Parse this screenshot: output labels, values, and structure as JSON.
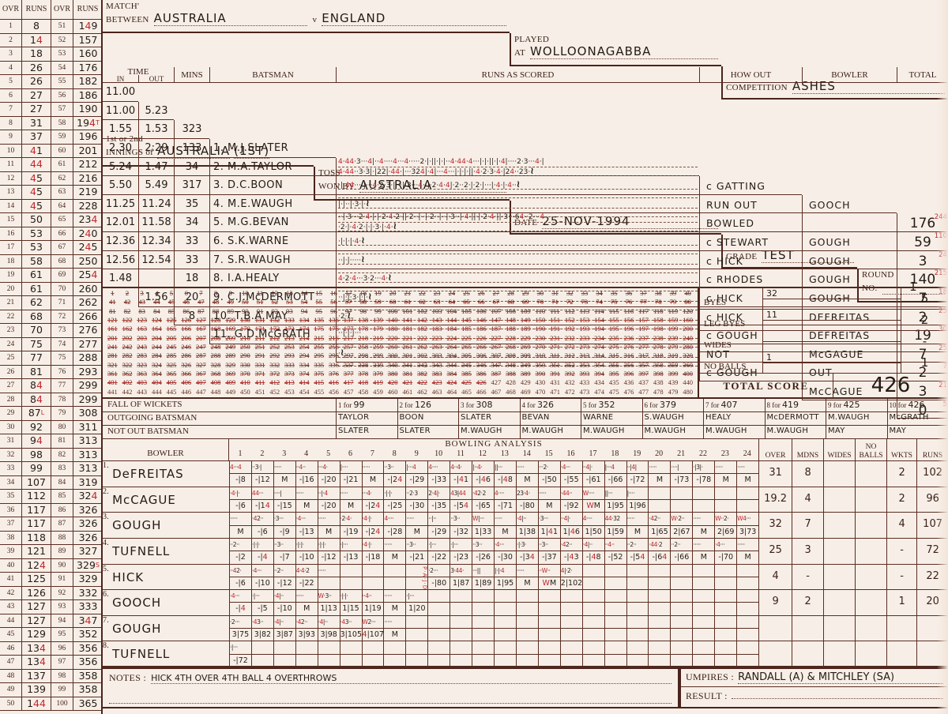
{
  "header": {
    "match_label": "MATCH'",
    "between_label": "BETWEEN",
    "team1": "AUSTRALIA",
    "vs": "v",
    "team2": "ENGLAND",
    "played_label": "PLAYED",
    "at_label": "AT",
    "venue": "WOLLOONAGABBA",
    "competition_label": "COMPETITION",
    "competition": "ASHES",
    "innings_label1": "1st or 2nd",
    "innings_label2": "INNINGS of",
    "innings_team": "AUSTRALIA",
    "innings_no": "(1ST)",
    "toss_label1": "TOSS",
    "toss_label2": "WON BY",
    "toss_team": "AUSTRALIA",
    "date_label": "DATE",
    "date": "25-NOV-1994",
    "grade_label": "GRADE",
    "grade": "TEST",
    "round_label": "ROUND",
    "no_label": "NO.",
    "round_no": "1"
  },
  "over_table": {
    "headers": [
      "OVR",
      "RUNS",
      "OVR",
      "RUNS"
    ],
    "runs_first": [
      "8",
      "14",
      "18",
      "26",
      "26",
      "27",
      "27",
      "31",
      "37",
      "41",
      "44",
      "45",
      "45",
      "45",
      "50",
      "53",
      "53",
      "58",
      "61",
      "61",
      "62",
      "68",
      "70",
      "75",
      "77",
      "81",
      "84",
      "84",
      "87",
      "92",
      "94",
      "98",
      "99",
      "107",
      "112",
      "117",
      "117",
      "118",
      "121",
      "124",
      "125",
      "126",
      "127",
      "127",
      "129",
      "134",
      "134",
      "137",
      "139",
      "144"
    ],
    "runs_second": [
      "149",
      "157",
      "160",
      "176",
      "182",
      "186",
      "190",
      "194",
      "196",
      "201",
      "212",
      "216",
      "219",
      "228",
      "234",
      "240",
      "245",
      "250",
      "254",
      "260",
      "262",
      "266",
      "276",
      "277",
      "288",
      "293",
      "299",
      "299",
      "308",
      "311",
      "313",
      "313",
      "313",
      "319",
      "324",
      "326",
      "326",
      "326",
      "327",
      "329",
      "329",
      "332",
      "333",
      "347",
      "352",
      "356",
      "356",
      "358",
      "358",
      "365"
    ],
    "marks_second": {
      "8": "T",
      "40": "S"
    },
    "marks_first": {
      "29": "L"
    }
  },
  "batting": {
    "time_label": "TIME",
    "in_label": "IN",
    "out_label": "OUT",
    "mins_label": "MINS",
    "batsman_label": "BATSMAN",
    "runs_label": "RUNS AS SCORED",
    "how_out_label": "HOW OUT",
    "bowler_label": "BOWLER",
    "total_label": "TOTAL",
    "rows": [
      {
        "in": "11.00",
        "out": "5.23",
        "mins": "323",
        "name": "1. M.J.SLATER",
        "scored": "4·44·3···4|··4····4···4·····2·|·||·|·|··4·44·4···|·|·||·|·4|····2·3···4·|",
        "scored2": "4·44··3·3|·|22|·44·|···324|·4|···4···|·|·|·||·4·2·3·4·|24··23·≀",
        "how_out": "c GATTING",
        "bowler": "GOOCH",
        "total": "176",
        "balls": "244"
      },
      {
        "in": "11.00",
        "out": "1.53",
        "mins": "133",
        "name": "2. M.A.TAYLOR",
        "scored": "·|·44····|···4·2·3·|···|·3···4··|·2·4·4|·2··2·|·2·|···|·4·|·4··≀",
        "how_out": "RUN OUT",
        "bowler": "",
        "total": "59",
        "balls": "110"
      },
      {
        "in": "1.55",
        "out": "2:29",
        "mins": "34",
        "name": "3. D.C.BOON",
        "scored": "|·|··|·3·|·≀",
        "how_out": "BOWLED",
        "bowler": "GOUGH",
        "total": "3",
        "balls": "24"
      },
      {
        "in": "2.30",
        "out": "1.47",
        "mins": "317",
        "name": "4. M.E.WAUGH",
        "scored": "··|·3···2·4·|·|·2·4·2·||·2··|··|·2··|··|·3··|·4·||·|·2·4·||·3···64··2···4",
        "scored2": "·2·|·4·2·|·|·3·|·4·≀",
        "how_out": "c STEWART",
        "bowler": "GOUGH",
        "total": "140",
        "balls": "215"
      },
      {
        "in": "5.24",
        "out": "5.49",
        "mins": "35",
        "name": "5. M.G.BEVAN",
        "scored": "·|·|·|·4·≀",
        "how_out": "c HICK",
        "bowler": "GOUGH",
        "total": "7",
        "balls": "18"
      },
      {
        "in": "5.50",
        "out": "11.24",
        "mins": "34",
        "name": "6. S.K.WARNE",
        "scored": "··|·|·····≀",
        "how_out": "c RHODES",
        "bowler": "GOUGH",
        "total": "2",
        "balls": "25"
      },
      {
        "in": "11.25",
        "out": "11.58",
        "mins": "33",
        "name": "7. S.R.WAUGH",
        "scored": "4·2·4···3·2···4·≀",
        "how_out": "c HICK",
        "bowler": "DEFREITAS",
        "total": "19",
        "balls": "30"
      },
      {
        "in": "12.01",
        "out": "12.34",
        "mins": "33",
        "name": "8. I.A.HEALY",
        "scored": "··|·|·3·|·|·≀",
        "how_out": "c HICK",
        "bowler": "DEFREITAS",
        "total": "7",
        "balls": "25"
      },
      {
        "in": "12.36",
        "out": "12.54",
        "mins": "18",
        "name": "9. C.J.McDERMOTT",
        "scored": "·2·≀",
        "how_out": "c GOUGH",
        "bowler": "McGAGUE",
        "total": "2",
        "balls": "7"
      },
      {
        "in": "12.56",
        "out": "",
        "mins": "20",
        "name": "10. T.B.A.MAY",
        "scored": "··|·|·|···",
        "how_out": "NOT",
        "bowler": "OUT",
        "total": "3",
        "balls": "21"
      },
      {
        "in": "1.48",
        "out": "1.56",
        "mins": "8",
        "name": "11. G.D.McGRATH",
        "scored": "·≀",
        "how_out": "c GOUGH",
        "bowler": "McCAGUE",
        "total": "0",
        "balls": "5"
      }
    ]
  },
  "tally_sheet": {
    "start": 1,
    "end": 480,
    "per_row": 40,
    "crossed_to": 426
  },
  "extras": {
    "rows": [
      {
        "label": "BYES",
        "tally": "32",
        "value": "5"
      },
      {
        "label": "LEG BYES",
        "tally": "11",
        "value": "2"
      },
      {
        "label": "WIDES",
        "tally": "",
        "value": "-"
      },
      {
        "label": "NO BALLS",
        "tally": "1",
        "value": "1"
      }
    ],
    "total_label": "TOTAL SCORE",
    "total_value": "426"
  },
  "fall_of_wickets": {
    "row_labels": [
      "FALL OF WICKETS",
      "OUTGOING BATSMAN",
      "NOT OUT BATSMAN"
    ],
    "wickets": [
      {
        "for": "1 for",
        "score": "99",
        "out": "TAYLOR",
        "notout": "SLATER"
      },
      {
        "for": "2 for",
        "score": "126",
        "out": "BOON",
        "notout": "SLATER"
      },
      {
        "for": "3 for",
        "score": "308",
        "out": "SLATER",
        "notout": "M.WAUGH"
      },
      {
        "for": "4 for",
        "score": "326",
        "out": "BEVAN",
        "notout": "M.WAUGH"
      },
      {
        "for": "5 for",
        "score": "352",
        "out": "WARNE",
        "notout": "M.WAUGH"
      },
      {
        "for": "6 for",
        "score": "379",
        "out": "S.WAUGH",
        "notout": "M.WAUGH"
      },
      {
        "for": "7 for",
        "score": "407",
        "out": "HEALY",
        "notout": "M.WAUGH"
      },
      {
        "for": "8 for",
        "score": "419",
        "out": "McDERMOTT",
        "notout": "M.WAUGH"
      },
      {
        "for": "9 for",
        "score": "425",
        "out": "M.WAUGH",
        "notout": "MAY"
      },
      {
        "for": "10 for",
        "score": "426",
        "out": "McGRATH",
        "notout": "MAY"
      }
    ]
  },
  "bowling": {
    "title": "BOWLING ANALYSIS",
    "bowler_label": "BOWLER",
    "right_headers": [
      "OVER",
      "MDNS",
      "WIDES",
      "NO BALLS",
      "WKTS",
      "RUNS"
    ],
    "bowlers": [
      {
        "no": "1.",
        "name": "DeFREITAS",
        "tally": [
          "4···4",
          "··3·|",
          "·····",
          "··4··",
          "···4·",
          "|····",
          "·····",
          "··3··",
          "|···4",
          "4····",
          "4··4·",
          "|··4·",
          "||···",
          "·····",
          "···2·",
          "·4···",
          "··4|·",
          "|···4",
          "··|4|",
          "·····",
          "····|",
          "·|3|·",
          "·····",
          "·····"
        ],
        "cum": [
          "-|8",
          "-|12",
          "M",
          "-|16",
          "-|20",
          "-|21",
          "M",
          "-|24",
          "-|29",
          "-|33",
          "-|41",
          "-|46",
          "-|48",
          "M",
          "-|50",
          "-|55",
          "-|61",
          "-|66",
          "-|72",
          "M",
          "-|73",
          "-|78",
          "M",
          "M"
        ],
        "over": "31",
        "mdns": "8",
        "wides": "",
        "noballs": "",
        "wkts": "2",
        "runs": "102"
      },
      {
        "no": "2.",
        "name": "McCAGUE",
        "tally": [
          "·4·|·",
          "44···",
          "····|",
          "·····",
          "··|·4",
          "·····",
          "···4·",
          "·|·|·",
          "··2·3",
          "2·4|·",
          "43|44",
          "·42·2",
          "4····",
          "23·4·",
          "·····",
          "·44··",
          "W····",
          "||···",
          "|····"
        ],
        "cum": [
          "-|6",
          "-|14",
          "-|15",
          "M",
          "-|20",
          "M",
          "-|24",
          "-|25",
          "-|30",
          "-|35",
          "-|54",
          "-|65",
          "-|71",
          "-|80",
          "M",
          "-|92",
          "WM",
          "1|95",
          "1|96"
        ],
        "over": "19.2",
        "mdns": "4",
        "wides": "",
        "noballs": "",
        "wkts": "2",
        "runs": "96"
      },
      {
        "no": "3.",
        "name": "GOUGH",
        "tally": [
          "·····",
          "·42··",
          "·3···",
          "·4···",
          "·····",
          "·2·4·",
          "·4·|·",
          "4····",
          "·····",
          "··|··",
          "··3··",
          "W|···",
          "·····",
          "·4|··",
          "·3···",
          "··4|·",
          "4····",
          "44·32",
          "·····",
          "·42··",
          "W·2··",
          "·····",
          "W··2·",
          "W4···"
        ],
        "cum": [
          "M",
          "-|6",
          "-|9",
          "-|13",
          "M",
          "-|19",
          "-|24",
          "-|28",
          "M",
          "-|29",
          "-|32",
          "1|33",
          "M",
          "1|38",
          "1|41",
          "1|46",
          "1|50",
          "1|59",
          "M",
          "1|65",
          "2|67",
          "M",
          "2|69",
          "3|73"
        ],
        "over": "32",
        "mdns": "7",
        "wides": "",
        "noballs": "",
        "wkts": "4",
        "runs": "107"
      },
      {
        "no": "4.",
        "name": "TUFNELL",
        "tally": [
          "··2··",
          "·|·|·",
          "··3··",
          "·|·|·",
          "·|·|·",
          "·|···",
          "·4·|·",
          "·····",
          "··3··",
          "·|···",
          "·|···",
          "··3··",
          "·4···",
          "·|·3·",
          "··3··",
          "·42··",
          "·4|··",
          "··4··",
          "··2··",
          "·44·2",
          "··2··",
          "·····",
          "·4···",
          "·····"
        ],
        "cum": [
          "-|2",
          "-|4",
          "-|7",
          "-|10",
          "-|12",
          "-|13",
          "-|18",
          "M",
          "-|21",
          "-|22",
          "-|23",
          "-|26",
          "-|30",
          "-|34",
          "-|37",
          "-|43",
          "-|48",
          "-|52",
          "-|54",
          "-|64",
          "-|66",
          "M",
          "-|70",
          "M"
        ],
        "over": "25",
        "mdns": "3",
        "wides": "",
        "noballs": "",
        "wkts": "-",
        "runs": "72"
      },
      {
        "no": "5.",
        "name": "HICK",
        "tally": [
          "··42·",
          "·4···",
          "··2··",
          "4·4·2",
          "·····"
        ],
        "cum": [
          "-|6",
          "-|10",
          "-|12",
          "-|22"
        ],
        "extra": {
          "label": "P·A·J·D",
          "start": 9,
          "tally": [
            "·2···",
            "3·44·",
            "···||",
            "|·|·4",
            "·····",
            "··W··",
            "4|·2·"
          ],
          "cum": [
            "-|80",
            "1|87",
            "1|89",
            "1|95",
            "M",
            "WM",
            "2|102"
          ]
        },
        "over": "4",
        "mdns": "-",
        "wides": "",
        "noballs": "",
        "wkts": "-",
        "runs": "22"
      },
      {
        "no": "6.",
        "name": "GOOCH",
        "tally": [
          "·4···",
          "·|···",
          "·4|··",
          "·····",
          "W·3··",
          "·|·|·",
          "··4··",
          "·····",
          "·|···"
        ],
        "cum": [
          "-|4",
          "-|5",
          "-|10",
          "M",
          "1|13",
          "1|15",
          "1|19",
          "M",
          "1|20"
        ],
        "over": "9",
        "mdns": "2",
        "wides": "",
        "noballs": "",
        "wkts": "1",
        "runs": "20"
      },
      {
        "no": "7.",
        "name": "GOUGH",
        "tally": [
          "·2···",
          "·43··",
          "·4|··",
          "·42··",
          "·4|··",
          "·43··",
          "W2···",
          "·····"
        ],
        "cum": [
          "3|75",
          "3|82",
          "3|87",
          "3|93",
          "3|98",
          "3|105",
          "4|107",
          "M"
        ],
        "over": "",
        "mdns": "",
        "wides": "",
        "noballs": "",
        "wkts": "",
        "runs": ""
      },
      {
        "no": "8.",
        "name": "TUFNELL",
        "tally": [
          "·|···"
        ],
        "cum": [
          "-|72"
        ],
        "over": "",
        "mdns": "",
        "wides": "",
        "noballs": "",
        "wkts": "",
        "runs": ""
      }
    ]
  },
  "notes": {
    "label": "NOTES :",
    "text": "HICK 4TH OVER 4TH BALL 4 OVERTHROWS"
  },
  "umpires": {
    "label": "UMPIRES :",
    "text": "RANDALL (A) & MITCHLEY (SA)"
  },
  "result": {
    "label": "RESULT :",
    "text": ""
  }
}
